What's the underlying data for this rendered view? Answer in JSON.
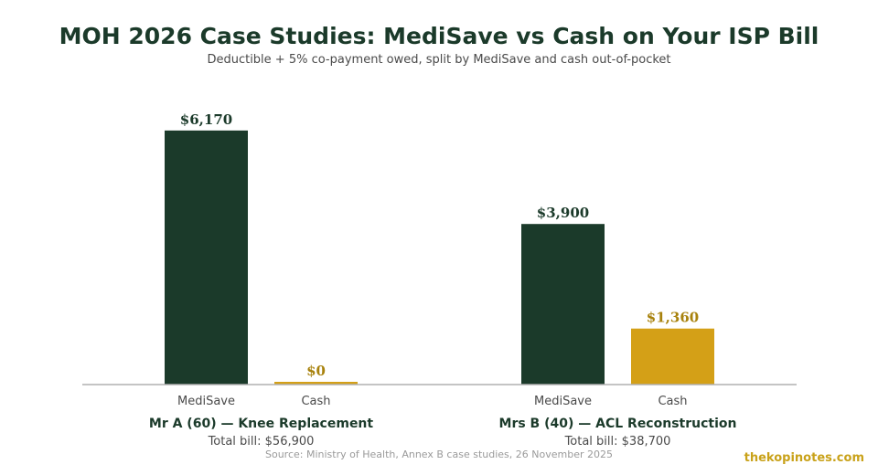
{
  "chart_data": {
    "type": "bar",
    "title": "MOH 2026 Case Studies: MediSave vs Cash on Your ISP Bill",
    "subtitle": "Deductible + 5% co-payment owed, split by MediSave and cash out-of-pocket",
    "ylim": [
      0,
      6500
    ],
    "groups": [
      {
        "label": "Mr A (60) — Knee Replacement",
        "sublabel": "Total bill: $56,900",
        "bars": [
          {
            "category": "MediSave",
            "value": 6170,
            "label": "$6,170"
          },
          {
            "category": "Cash",
            "value": 0,
            "label": "$0"
          }
        ]
      },
      {
        "label": "Mrs B (40) — ACL Reconstruction",
        "sublabel": "Total bill: $38,700",
        "bars": [
          {
            "category": "MediSave",
            "value": 3900,
            "label": "$3,900"
          },
          {
            "category": "Cash",
            "value": 1360,
            "label": "$1,360"
          }
        ]
      }
    ],
    "colors": {
      "MediSave": "#1b3a2a",
      "Cash": "#d4a017",
      "MediSave_label": "#1b3a2a",
      "Cash_label": "#a8820d",
      "baseline": "#b0b0b0"
    }
  },
  "source": "Source: Ministry of Health, Annex B case studies, 26 November 2025",
  "brand": "thekopinotes.com"
}
